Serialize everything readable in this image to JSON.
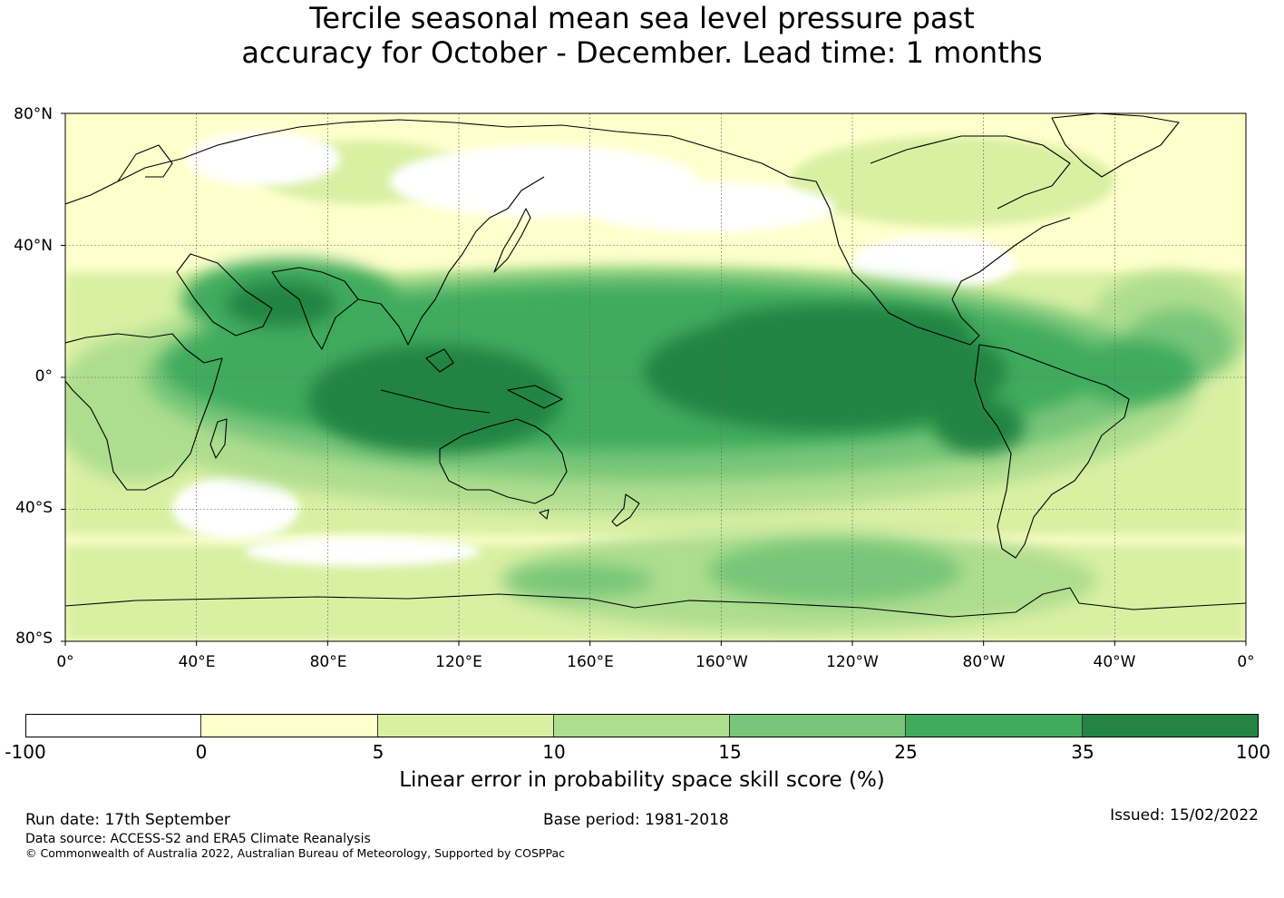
{
  "title": {
    "line1": "Tercile seasonal mean sea level pressure past",
    "line2": "accuracy for October - December. Lead time: 1 months"
  },
  "map": {
    "lat_ticks": [
      "80°N",
      "40°N",
      "0°",
      "40°S",
      "80°S"
    ],
    "lon_ticks": [
      "0°",
      "40°E",
      "80°E",
      "120°E",
      "160°E",
      "160°W",
      "120°W",
      "80°W",
      "40°W",
      "0°"
    ]
  },
  "colorbar": {
    "title": "Linear error in probability space skill score (%)",
    "boundaries": [
      "-100",
      "0",
      "5",
      "10",
      "15",
      "25",
      "35",
      "100"
    ],
    "colors": [
      "#ffffff",
      "#ffffcc",
      "#d9f0a3",
      "#addd8e",
      "#78c679",
      "#41ab5d",
      "#238443"
    ]
  },
  "footer": {
    "run_date": "Run date: 17th September",
    "base_period": "Base period: 1981-2018",
    "issued": "Issued: 15/02/2022",
    "data_source": "Data source: ACCESS-S2 and ERA5 Climate Reanalysis",
    "copyright": "© Commonwealth of Australia 2022, Australian Bureau of Meteorology, Supported by COSPPac"
  },
  "icons": {
    "map-layer": "skill-score-map"
  }
}
